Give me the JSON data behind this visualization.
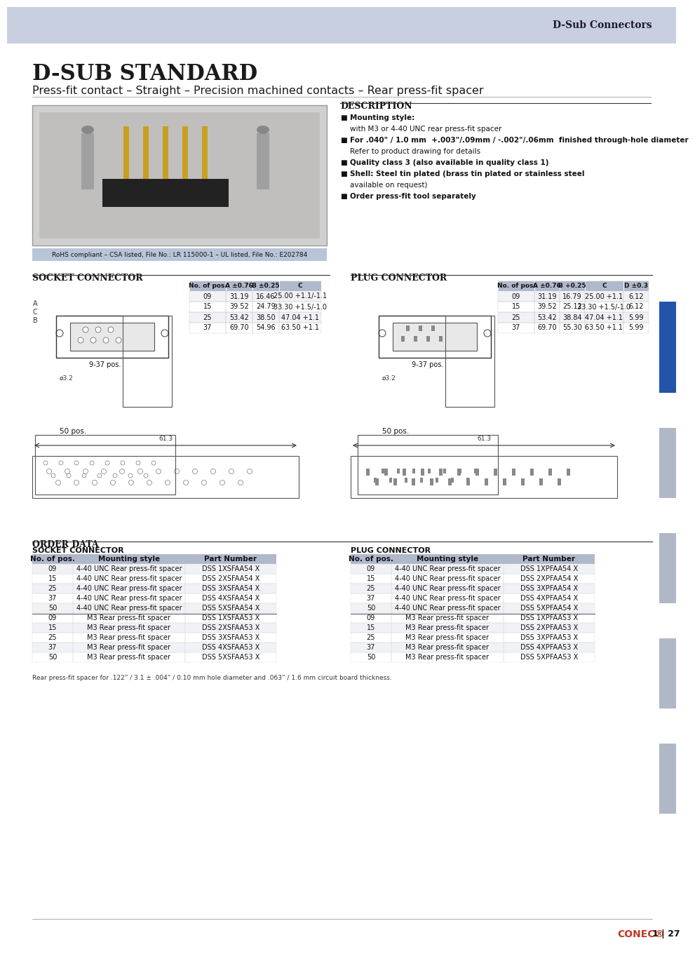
{
  "header_bg": "#c8cfe0",
  "header_text": "D-Sub Connectors",
  "header_text_color": "#1a1a2e",
  "page_bg": "#ffffff",
  "title": "D-SUB STANDARD",
  "subtitle": "Press-fit contact – Straight – Precision machined contacts – Rear press-fit spacer",
  "rohs_text": "RoHS compliant – CSA listed, File No.: LR 115000-1 – UL listed, File No.: E202784",
  "description_title": "DESCRIPTION",
  "description_bullets": [
    "Mounting style:",
    "with M3 or 4-40 UNC rear press-fit spacer",
    "For .040” / 1.0 mm +.003”/0.09 mm / –.002”/0.06 mm finished through-hole diameter",
    "Refer to product drawing for details",
    "Quality class 3 (also available in quality class 1)",
    "Shell: Steel tin plated (brass tin plated or stainless steel available on request)",
    "Order press-fit tool separately"
  ],
  "socket_connector_title": "SOCKET CONNECTOR",
  "plug_connector_title": "PLUG CONNECTOR",
  "table_header_bg": "#b0b8cc",
  "socket_table_cols": [
    "No. of pos.",
    "A ±0.76",
    "B ±0.25",
    "C"
  ],
  "socket_table_rows": [
    [
      "09",
      "31.19",
      "16.46",
      "25.00 +1.1/-1.1"
    ],
    [
      "15",
      "39.52",
      "24.79",
      "33.30 +1.5/-1.0"
    ],
    [
      "25",
      "53.42",
      "38.50",
      "47.04 +1.1"
    ],
    [
      "37",
      "69.70",
      "54.96",
      "63.50 +1.1"
    ]
  ],
  "plug_table_cols": [
    "No. of pos.",
    "A ±0.76",
    "B +0.25",
    "C",
    "D ±0.3"
  ],
  "plug_table_rows": [
    [
      "09",
      "31.19",
      "16.79",
      "25.00 +1.1",
      "6.12"
    ],
    [
      "15",
      "39.52",
      "25.12",
      "33.30 +1.5/-1.0",
      "6.12"
    ],
    [
      "25",
      "53.42",
      "38.84",
      "47.04 +1.1",
      "5.99"
    ],
    [
      "37",
      "69.70",
      "55.30",
      "63.50 +1.1",
      "5.99"
    ]
  ],
  "order_data_title": "ORDER DATA",
  "socket_order_title": "SOCKET CONNECTOR",
  "plug_order_title": "PLUG CONNECTOR",
  "order_header_bg": "#b0b8cc",
  "order_cols_socket": [
    "No. of pos.",
    "Mounting style",
    "Part Number"
  ],
  "order_rows_socket": [
    [
      "09",
      "4-40 UNC Rear press-fit spacer",
      "DSS 1XSFAA54 X"
    ],
    [
      "15",
      "4-40 UNC Rear press-fit spacer",
      "DSS 2XSFAA54 X"
    ],
    [
      "25",
      "4-40 UNC Rear press-fit spacer",
      "DSS 3XSFAA54 X"
    ],
    [
      "37",
      "4-40 UNC Rear press-fit spacer",
      "DSS 4XSFAA54 X"
    ],
    [
      "50",
      "4-40 UNC Rear press-fit spacer",
      "DSS 5XSFAA54 X"
    ],
    [
      "09",
      "M3 Rear press-fit spacer",
      "DSS 1XSFAA53 X"
    ],
    [
      "15",
      "M3 Rear press-fit spacer",
      "DSS 2XSFAA53 X"
    ],
    [
      "25",
      "M3 Rear press-fit spacer",
      "DSS 3XSFAA53 X"
    ],
    [
      "37",
      "M3 Rear press-fit spacer",
      "DSS 4XSFAA53 X"
    ],
    [
      "50",
      "M3 Rear press-fit spacer",
      "DSS 5XSFAA53 X"
    ]
  ],
  "order_cols_plug": [
    "No. of pos.",
    "Mounting style",
    "Part Number"
  ],
  "order_rows_plug": [
    [
      "09",
      "4-40 UNC Rear press-fit spacer",
      "DSS 1XPFAA54 X"
    ],
    [
      "15",
      "4-40 UNC Rear press-fit spacer",
      "DSS 2XPFAA54 X"
    ],
    [
      "25",
      "4-40 UNC Rear press-fit spacer",
      "DSS 3XPFAA54 X"
    ],
    [
      "37",
      "4-40 UNC Rear press-fit spacer",
      "DSS 4XPFAA54 X"
    ],
    [
      "50",
      "4-40 UNC Rear press-fit spacer",
      "DSS 5XPFAA54 X"
    ],
    [
      "09",
      "M3 Rear press-fit spacer",
      "DSS 1XPFAA53 X"
    ],
    [
      "15",
      "M3 Rear press-fit spacer",
      "DSS 2XPFAA53 X"
    ],
    [
      "25",
      "M3 Rear press-fit spacer",
      "DSS 3XPFAA53 X"
    ],
    [
      "37",
      "M3 Rear press-fit spacer",
      "DSS 4XPFAA53 X"
    ],
    [
      "50",
      "M3 Rear press-fit spacer",
      "DSS 5XPFAA53 X"
    ]
  ],
  "footer_note": "Rear press-fit spacer for .122” / 3.1 ± .004” / 0.10 mm hole diameter and .063” / 1.6 mm circuit board thickness.",
  "page_number": "1 | 27",
  "side_tab_color": "#2255aa",
  "accent_color": "#c8cfe0"
}
